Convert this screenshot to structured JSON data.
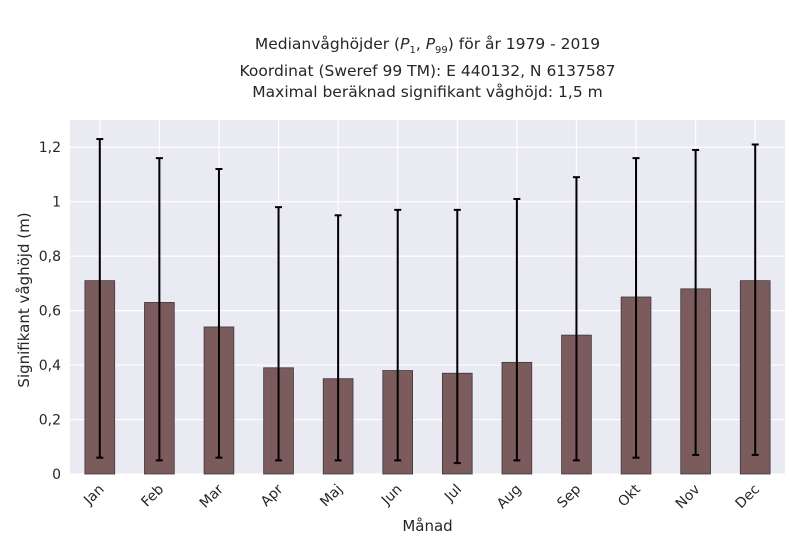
{
  "chart_data": {
    "type": "bar",
    "title_lines": [
      "Medianvåghöjder (P1, P99) för år 1979 - 2019",
      "Koordinat (Sweref 99 TM): E 440132, N 6137587",
      "Maximal beräknad signifikant våghöjd: 1,5 m"
    ],
    "xlabel": "Månad",
    "ylabel": "Signifikant våghöjd (m)",
    "categories": [
      "Jan",
      "Feb",
      "Mar",
      "Apr",
      "Maj",
      "Jun",
      "Jul",
      "Aug",
      "Sep",
      "Okt",
      "Nov",
      "Dec"
    ],
    "values": [
      0.71,
      0.63,
      0.54,
      0.39,
      0.35,
      0.38,
      0.37,
      0.41,
      0.51,
      0.65,
      0.68,
      0.71
    ],
    "p1": [
      0.06,
      0.05,
      0.06,
      0.05,
      0.05,
      0.05,
      0.04,
      0.05,
      0.05,
      0.06,
      0.07,
      0.07
    ],
    "p99": [
      1.23,
      1.16,
      1.12,
      0.98,
      0.95,
      0.97,
      0.97,
      1.01,
      1.09,
      1.16,
      1.19,
      1.21
    ],
    "ylim": [
      0,
      1.3
    ],
    "yticks": [
      0,
      0.2,
      0.4,
      0.6,
      0.8,
      1,
      1.2
    ],
    "ytick_labels": [
      "0",
      "0,2",
      "0,4",
      "0,6",
      "0,8",
      "1",
      "1,2"
    ],
    "grid": true,
    "colors": {
      "bar": "#7b5b5c",
      "bar_edge": "#3a3a3a",
      "errorbar": "#000000",
      "background": "#eaeaf2",
      "grid": "#ffffff"
    }
  }
}
